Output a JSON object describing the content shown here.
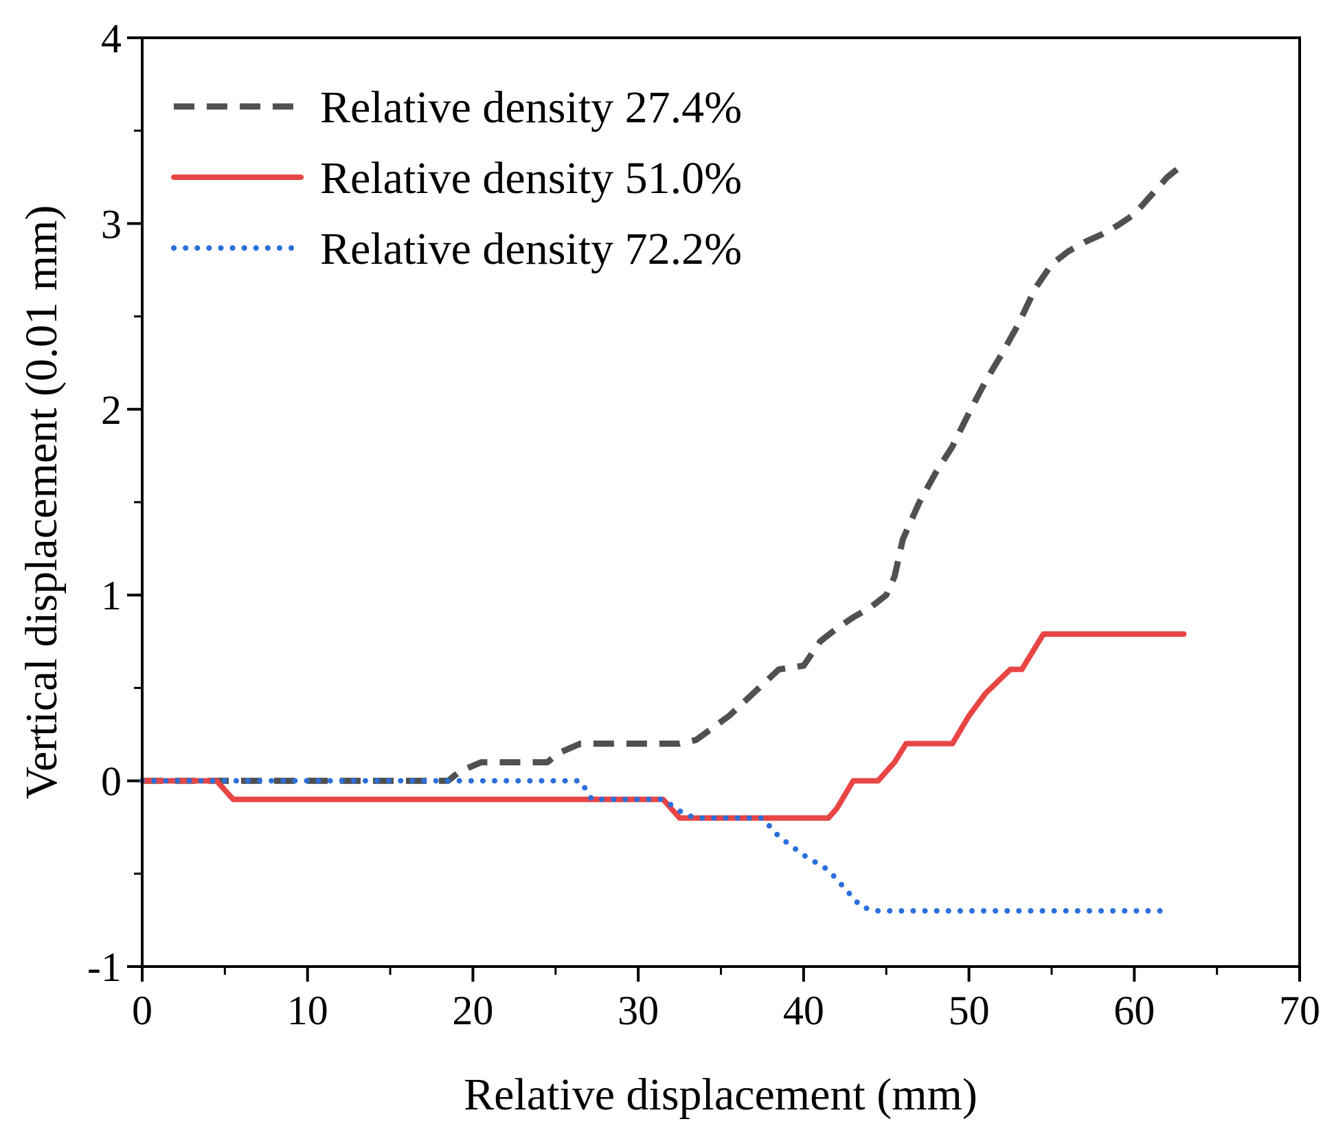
{
  "chart_data": {
    "type": "line",
    "title": "",
    "xlabel": "Relative displacement (mm)",
    "ylabel": "Vertical displacement (0.01 mm)",
    "xlim": [
      0,
      70
    ],
    "ylim": [
      -1,
      4
    ],
    "xticks": [
      0,
      10,
      20,
      30,
      40,
      50,
      60,
      70
    ],
    "xtick_labels": [
      "0",
      "10",
      "20",
      "30",
      "40",
      "50",
      "60",
      "70"
    ],
    "yticks": [
      -1,
      0,
      1,
      2,
      3,
      4
    ],
    "ytick_labels": [
      "-1",
      "0",
      "1",
      "2",
      "3",
      "4"
    ],
    "grid": false,
    "legend_position": "top-left",
    "series": [
      {
        "name": "Relative density 27.4%",
        "color": "#505050",
        "style": "dashed",
        "x": [
          0,
          18.5,
          19.2,
          20.5,
          24.5,
          25.2,
          26.5,
          32.5,
          33.5,
          35.5,
          38.5,
          40,
          41,
          42,
          43,
          44,
          45,
          45.5,
          46,
          47,
          48,
          49,
          50,
          51,
          52,
          53,
          54,
          55,
          56,
          57,
          58,
          59,
          60,
          61,
          62,
          62.7
        ],
        "values": [
          0,
          0,
          0.05,
          0.1,
          0.1,
          0.15,
          0.2,
          0.2,
          0.22,
          0.35,
          0.6,
          0.62,
          0.75,
          0.82,
          0.88,
          0.93,
          1.0,
          1.1,
          1.3,
          1.5,
          1.66,
          1.8,
          1.98,
          2.15,
          2.3,
          2.46,
          2.65,
          2.78,
          2.85,
          2.9,
          2.94,
          2.99,
          3.05,
          3.15,
          3.25,
          3.3
        ]
      },
      {
        "name": "Relative density 51.0%",
        "color": "#e84545",
        "style": "solid",
        "x": [
          0,
          4.5,
          5.5,
          27,
          31.5,
          32.5,
          41.5,
          42,
          43,
          44.5,
          45.5,
          46.2,
          49,
          50,
          51,
          52.5,
          53.2,
          54.5,
          63
        ],
        "values": [
          0,
          0,
          -0.1,
          -0.1,
          -0.1,
          -0.2,
          -0.2,
          -0.15,
          0,
          0,
          0.1,
          0.2,
          0.2,
          0.35,
          0.47,
          0.6,
          0.6,
          0.79,
          0.79
        ]
      },
      {
        "name": "Relative density 72.2%",
        "color": "#2a6fdb",
        "style": "dotted",
        "x": [
          0,
          26.5,
          27.2,
          31.5,
          32.8,
          33.5,
          37.5,
          38.5,
          40,
          41.5,
          42.5,
          43.5,
          44.5,
          62
        ],
        "values": [
          0,
          0,
          -0.1,
          -0.1,
          -0.18,
          -0.2,
          -0.2,
          -0.3,
          -0.4,
          -0.48,
          -0.58,
          -0.68,
          -0.7,
          -0.7
        ]
      }
    ]
  }
}
